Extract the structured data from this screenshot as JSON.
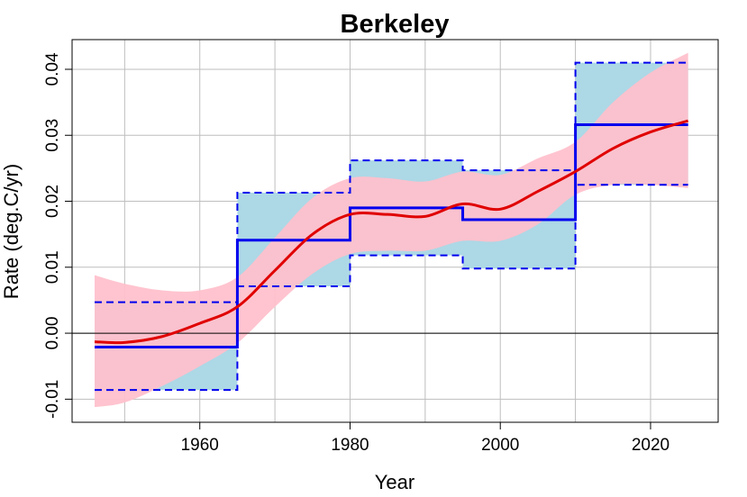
{
  "chart_data": {
    "type": "line",
    "title": "Berkeley",
    "xlabel": "Year",
    "ylabel": "Rate (deg.C/yr)",
    "xlim": [
      1943,
      2029
    ],
    "ylim": [
      -0.0135,
      0.0445
    ],
    "x_ticks": [
      1960,
      1980,
      2000,
      2020
    ],
    "x_tick_labels": [
      "1960",
      "1980",
      "2000",
      "2020"
    ],
    "y_ticks": [
      -0.01,
      0.0,
      0.01,
      0.02,
      0.03,
      0.04
    ],
    "y_tick_labels": [
      "-0.01",
      "0.00",
      "0.01",
      "0.02",
      "0.03",
      "0.04"
    ],
    "x_grid": [
      1950,
      1960,
      1970,
      1980,
      1990,
      2000,
      2010,
      2020
    ],
    "y_grid": [
      -0.01,
      0.0,
      0.01,
      0.02,
      0.03,
      0.04
    ],
    "grid": true,
    "zero_line": 0.0,
    "colors": {
      "smooth_line": "#e00000",
      "smooth_band": "#ffc0cb",
      "step_line": "#0000ee",
      "step_band": "#add8e6",
      "grid": "#bebebe"
    },
    "series": [
      {
        "kind": "smooth",
        "x": [
          1946,
          1950,
          1955,
          1960,
          1965,
          1970,
          1975,
          1980,
          1985,
          1990,
          1995,
          2000,
          2005,
          2010,
          2015,
          2020,
          2025
        ],
        "y": [
          -0.0013,
          -0.0014,
          -0.0005,
          0.0015,
          0.004,
          0.0095,
          0.015,
          0.018,
          0.018,
          0.0177,
          0.0196,
          0.0188,
          0.0215,
          0.0245,
          0.028,
          0.0305,
          0.0322
        ],
        "lower": [
          -0.0112,
          -0.0105,
          -0.008,
          -0.005,
          -0.0015,
          0.004,
          0.009,
          0.012,
          0.0125,
          0.0125,
          0.014,
          0.014,
          0.0165,
          0.021,
          0.0225,
          0.0225,
          0.022
        ],
        "upper": [
          0.0088,
          0.0075,
          0.0065,
          0.0065,
          0.0085,
          0.0145,
          0.0205,
          0.0235,
          0.0235,
          0.023,
          0.0245,
          0.024,
          0.0265,
          0.029,
          0.035,
          0.0395,
          0.0425
        ]
      },
      {
        "kind": "step",
        "segments": [
          {
            "x0": 1946,
            "x1": 1965,
            "value": -0.0021,
            "lower": -0.0086,
            "upper": 0.0047
          },
          {
            "x0": 1965,
            "x1": 1980,
            "value": 0.0141,
            "lower": 0.0071,
            "upper": 0.0213
          },
          {
            "x0": 1980,
            "x1": 1995,
            "value": 0.019,
            "lower": 0.0118,
            "upper": 0.0262
          },
          {
            "x0": 1995,
            "x1": 2010,
            "value": 0.0172,
            "lower": 0.0098,
            "upper": 0.0247
          },
          {
            "x0": 2010,
            "x1": 2025,
            "value": 0.0316,
            "lower": 0.0225,
            "upper": 0.041
          }
        ]
      }
    ]
  }
}
